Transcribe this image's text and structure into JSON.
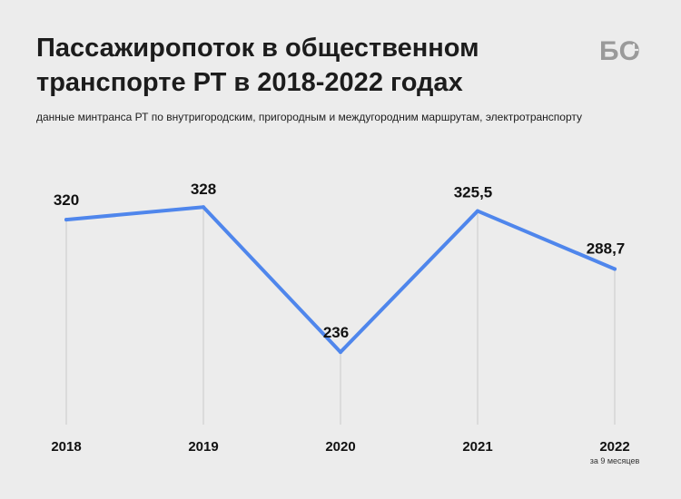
{
  "header": {
    "title_line1": "Пассажиропоток в общественном",
    "title_line2": "транспорте РТ в 2018-2022 годах",
    "subtitle": "данные минтранса РТ по внутригородским, пригородным и междугородним маршрутам, электротранспорту"
  },
  "logo": {
    "text": "БО"
  },
  "colors": {
    "background": "#ececec",
    "line": "#4f86ec",
    "gridline": "#d2d2d2",
    "logo": "#9a9a9a"
  },
  "chart_data": {
    "type": "line",
    "title": "Пассажиропоток в общественном транспорте РТ в 2018-2022 годах",
    "subtitle": "данные минтранса РТ по внутригородским, пригородным и междугородним маршрутам, электротранспорту",
    "xlabel": "",
    "ylabel": "",
    "categories": [
      "2018",
      "2019",
      "2020",
      "2021",
      "2022"
    ],
    "category_notes": [
      "",
      "",
      "",
      "",
      "за 9 месяцев"
    ],
    "values": [
      320,
      328,
      236,
      325.5,
      288.7
    ],
    "value_labels": [
      "320",
      "328",
      "236",
      "325,5",
      "288,7"
    ],
    "ylim": [
      190,
      350
    ],
    "grid": "vertical",
    "legend": "none"
  }
}
